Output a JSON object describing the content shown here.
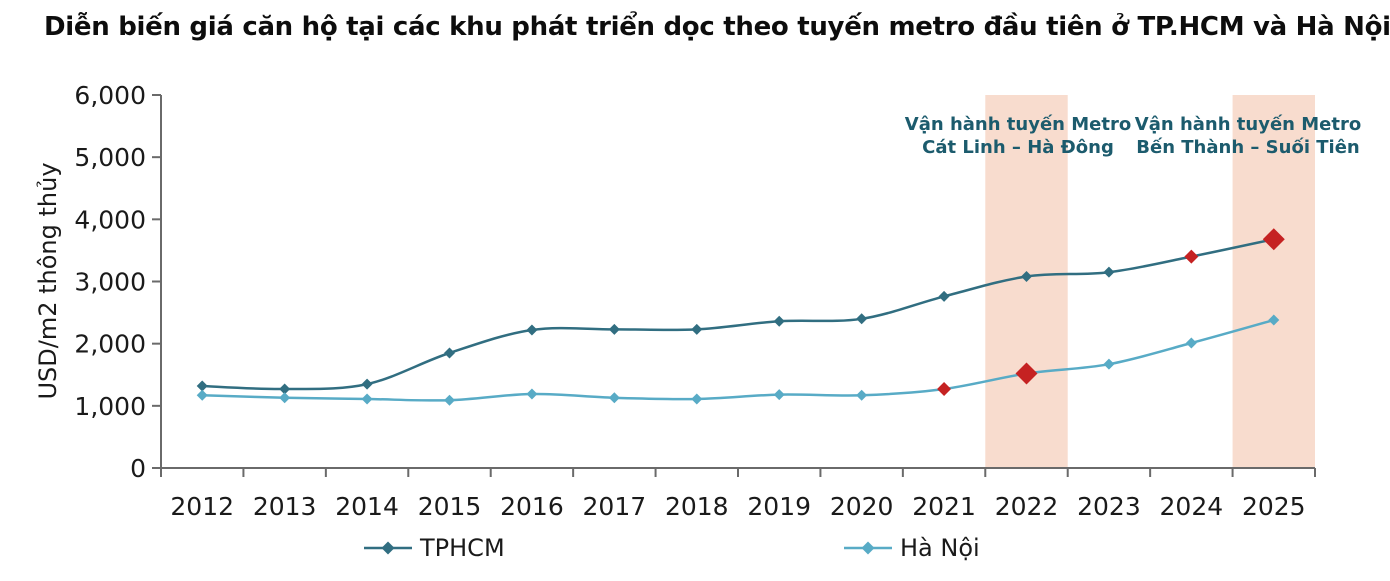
{
  "chart_data": {
    "type": "line",
    "title": "Diễn biến giá căn hộ tại các khu phát triển dọc theo tuyến metro đầu tiên ở TP.HCM và Hà Nội",
    "ylabel": "USD/m2 thông thủy",
    "xlabel": "",
    "categories": [
      2012,
      2013,
      2014,
      2015,
      2016,
      2017,
      2018,
      2019,
      2020,
      2021,
      2022,
      2023,
      2024,
      2025
    ],
    "series": [
      {
        "name": "TPHCM",
        "color": "#316e81",
        "values": [
          1320,
          1270,
          1350,
          1850,
          2220,
          2230,
          2230,
          2360,
          2400,
          2760,
          3080,
          3150,
          3400,
          3680
        ]
      },
      {
        "name": "Hà Nội",
        "color": "#58abc6",
        "values": [
          1170,
          1130,
          1110,
          1090,
          1190,
          1130,
          1110,
          1180,
          1170,
          1270,
          1520,
          1670,
          2010,
          2380
        ]
      }
    ],
    "ylim": [
      0,
      6000
    ],
    "y_ticks": [
      0,
      1000,
      2000,
      3000,
      4000,
      5000,
      6000
    ],
    "grid": false,
    "legend_position": "bottom",
    "highlight_color": "#c52222",
    "highlights": [
      {
        "series": "Hà Nội",
        "year": 2021,
        "size": "small"
      },
      {
        "series": "Hà Nội",
        "year": 2022,
        "size": "large"
      },
      {
        "series": "TPHCM",
        "year": 2024,
        "size": "small"
      },
      {
        "series": "TPHCM",
        "year": 2025,
        "size": "large"
      }
    ],
    "shaded_bands": [
      {
        "year": 2022,
        "color": "#f8dcce",
        "label_line1": "Vận hành tuyến Metro",
        "label_line2": "Cát Linh – Hà Đông"
      },
      {
        "year": 2025,
        "color": "#f8dcce",
        "label_line1": "Vận hành tuyến Metro",
        "label_line2": "Bến Thành – Suối Tiên"
      }
    ],
    "axis_color": "#6a6a6a"
  }
}
